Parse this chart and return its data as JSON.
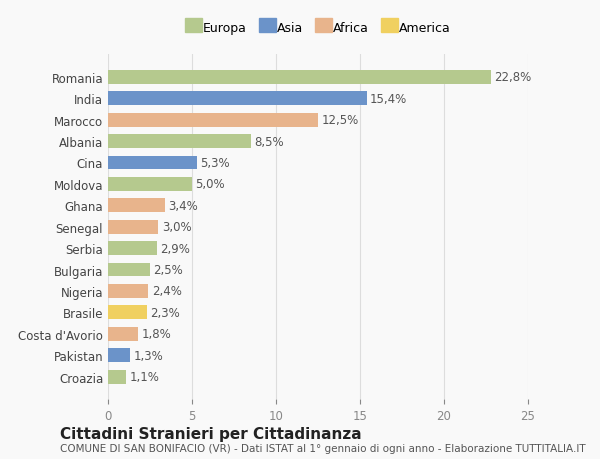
{
  "countries": [
    "Romania",
    "India",
    "Marocco",
    "Albania",
    "Cina",
    "Moldova",
    "Ghana",
    "Senegal",
    "Serbia",
    "Bulgaria",
    "Nigeria",
    "Brasile",
    "Costa d'Avorio",
    "Pakistan",
    "Croazia"
  ],
  "values": [
    22.8,
    15.4,
    12.5,
    8.5,
    5.3,
    5.0,
    3.4,
    3.0,
    2.9,
    2.5,
    2.4,
    2.3,
    1.8,
    1.3,
    1.1
  ],
  "labels": [
    "22,8%",
    "15,4%",
    "12,5%",
    "8,5%",
    "5,3%",
    "5,0%",
    "3,4%",
    "3,0%",
    "2,9%",
    "2,5%",
    "2,4%",
    "2,3%",
    "1,8%",
    "1,3%",
    "1,1%"
  ],
  "continents": [
    "Europa",
    "Asia",
    "Africa",
    "Europa",
    "Asia",
    "Europa",
    "Africa",
    "Africa",
    "Europa",
    "Europa",
    "Africa",
    "America",
    "Africa",
    "Asia",
    "Europa"
  ],
  "continent_colors": {
    "Europa": "#b5c98e",
    "Asia": "#6b93c9",
    "Africa": "#e8b48c",
    "America": "#f0d060"
  },
  "legend_order": [
    "Europa",
    "Asia",
    "Africa",
    "America"
  ],
  "title": "Cittadini Stranieri per Cittadinanza",
  "subtitle": "COMUNE DI SAN BONIFACIO (VR) - Dati ISTAT al 1° gennaio di ogni anno - Elaborazione TUTTITALIA.IT",
  "xlim": [
    0,
    25
  ],
  "xticks": [
    0,
    5,
    10,
    15,
    20,
    25
  ],
  "background_color": "#f9f9f9",
  "grid_color": "#dddddd",
  "bar_height": 0.65,
  "label_fontsize": 8.5,
  "tick_fontsize": 8.5,
  "title_fontsize": 11,
  "subtitle_fontsize": 7.5
}
